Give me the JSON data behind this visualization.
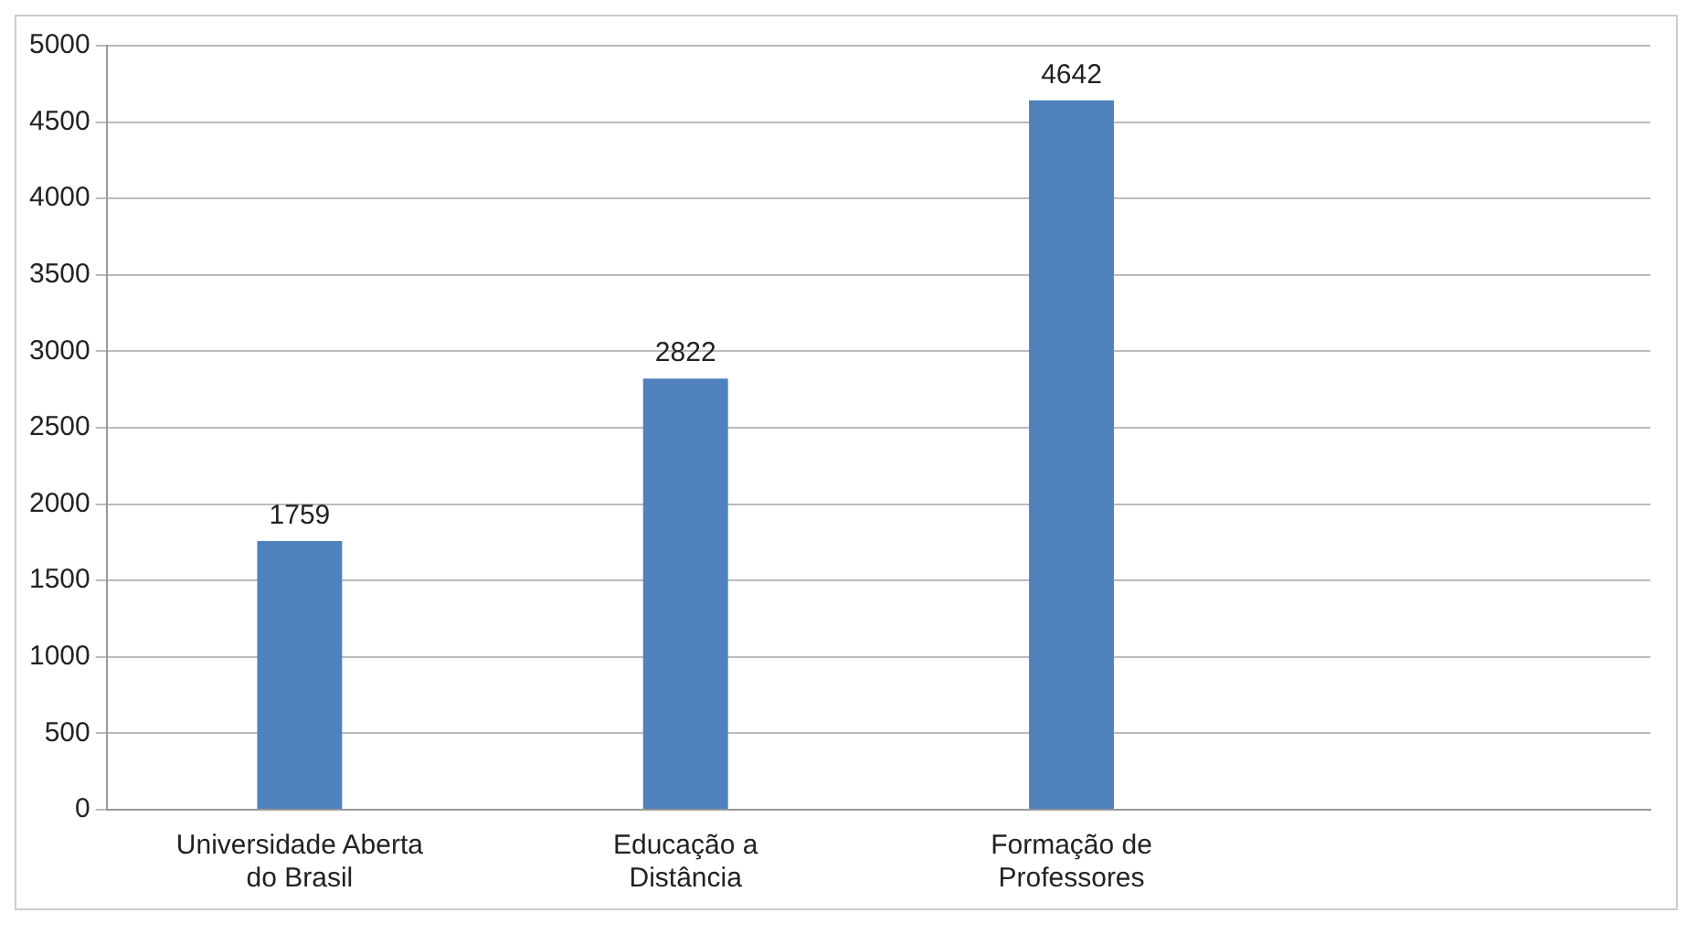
{
  "chart_data": {
    "type": "bar",
    "categories": [
      "Universidade Aberta do Brasil",
      "Educação a Distância",
      "Formação de Professores",
      null
    ],
    "values": [
      1759,
      2822,
      4642,
      null
    ],
    "color": "#4f81bd",
    "ylim": [
      0,
      5000
    ],
    "yticks": [
      0,
      500,
      1000,
      1500,
      2000,
      2500,
      3000,
      3500,
      4000,
      4500,
      5000
    ],
    "grid": "y",
    "legend": false,
    "data_labels": true
  }
}
